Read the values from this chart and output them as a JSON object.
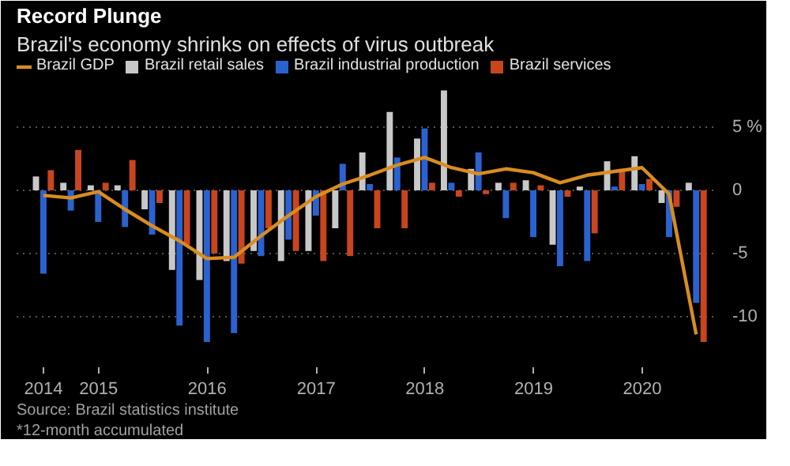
{
  "chart_data": {
    "type": "bar",
    "title": "Record Plunge",
    "subtitle": "Brazil's economy shrinks on effects of virus outbreak",
    "x": [
      "2014-06-30",
      "2014-09-30",
      "2014-12-31",
      "2015-03-31",
      "2015-06-30",
      "2015-09-30",
      "2015-12-31",
      "2016-03-31",
      "2016-06-30",
      "2016-09-30",
      "2016-12-31",
      "2017-03-31",
      "2017-06-30",
      "2017-09-30",
      "2017-12-31",
      "2018-03-31",
      "2018-06-30",
      "2018-09-30",
      "2018-12-31",
      "2019-03-31",
      "2019-06-30",
      "2019-09-30",
      "2019-12-31",
      "2020-03-31",
      "2020-06-30"
    ],
    "series": [
      {
        "name": "Brazil GDP",
        "type": "line",
        "color": "#d98c1f",
        "values": [
          -0.4,
          -0.6,
          -0.1,
          -1.5,
          -2.8,
          -4.0,
          -5.4,
          -5.3,
          -3.6,
          -2.0,
          -0.5,
          0.5,
          1.2,
          2.0,
          2.6,
          1.8,
          1.3,
          1.7,
          1.4,
          0.6,
          1.2,
          1.5,
          1.8,
          -0.3,
          -11.4
        ]
      },
      {
        "name": "Brazil retail sales",
        "color": "#c8c8c8",
        "values": [
          1.1,
          0.6,
          0.4,
          0.4,
          -1.5,
          -6.3,
          -7.1,
          -5.6,
          -4.8,
          -5.6,
          -4.8,
          -3.0,
          3.0,
          6.2,
          4.1,
          7.9,
          1.7,
          0.6,
          0.8,
          -4.3,
          0.3,
          2.3,
          2.7,
          -1.0,
          0.6
        ]
      },
      {
        "name": "Brazil industrial production",
        "color": "#2a62d0",
        "values": [
          -6.6,
          -1.6,
          -2.5,
          -2.9,
          -3.5,
          -10.7,
          -12.0,
          -11.3,
          -5.2,
          -3.9,
          -2.0,
          2.1,
          0.5,
          2.6,
          4.9,
          0.6,
          3.0,
          -2.2,
          -3.7,
          -6.0,
          -5.6,
          0.3,
          0.5,
          -3.7,
          -8.9
        ]
      },
      {
        "name": "Brazil services",
        "color": "#c8451e",
        "values": [
          1.6,
          3.2,
          0.6,
          2.4,
          -1.0,
          -4.3,
          -5.0,
          -5.8,
          -3.0,
          -4.8,
          -5.6,
          -5.2,
          -3.0,
          -3.0,
          0.6,
          -0.5,
          -0.3,
          0.6,
          0.4,
          -0.5,
          -3.4,
          1.7,
          0.9,
          -1.3,
          -12.0
        ]
      }
    ],
    "xlim": [
      "2014-04-01",
      "2020-09-01"
    ],
    "xticks": [
      {
        "value": "2014-06-30",
        "label": "2014"
      },
      {
        "value": "2015-01-01",
        "label": "2015"
      },
      {
        "value": "2016-01-01",
        "label": "2016"
      },
      {
        "value": "2017-01-01",
        "label": "2017"
      },
      {
        "value": "2018-01-01",
        "label": "2018"
      },
      {
        "value": "2019-01-01",
        "label": "2019"
      },
      {
        "value": "2020-01-01",
        "label": "2020"
      }
    ],
    "ylim": [
      -14,
      10.5
    ],
    "yticks": [
      {
        "value": 5,
        "label": "5 %"
      },
      0,
      -5,
      -10
    ],
    "grid": "y",
    "legend": "top",
    "annotations": [
      "Source: Brazil statistics institute",
      "*12-month accumulated"
    ]
  }
}
